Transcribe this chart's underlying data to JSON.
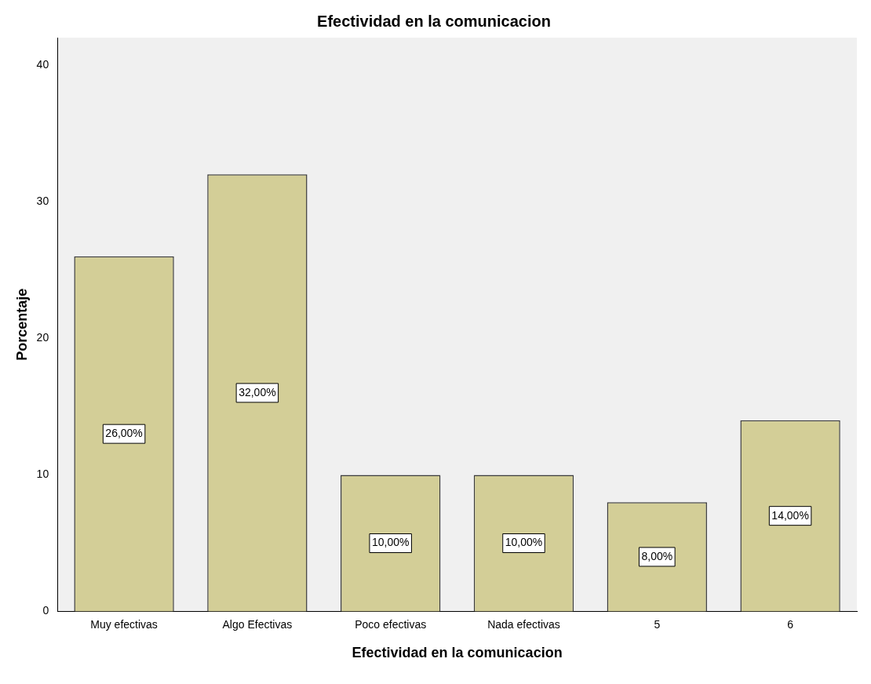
{
  "chart_data": {
    "type": "bar",
    "title": "Efectividad en la comunicacion",
    "xlabel": "Efectividad en la comunicacion",
    "ylabel": "Porcentaje",
    "categories": [
      "Muy efectivas",
      "Algo Efectivas",
      "Poco efectivas",
      "Nada efectivas",
      "5",
      "6"
    ],
    "values": [
      26,
      32,
      10,
      10,
      8,
      14
    ],
    "value_labels": [
      "26,00%",
      "32,00%",
      "10,00%",
      "10,00%",
      "8,00%",
      "14,00%"
    ],
    "color": "#d3ce97",
    "ylim": [
      0,
      42
    ],
    "yticks": [
      0,
      10,
      20,
      30,
      40
    ],
    "grid": false,
    "legend": false
  }
}
